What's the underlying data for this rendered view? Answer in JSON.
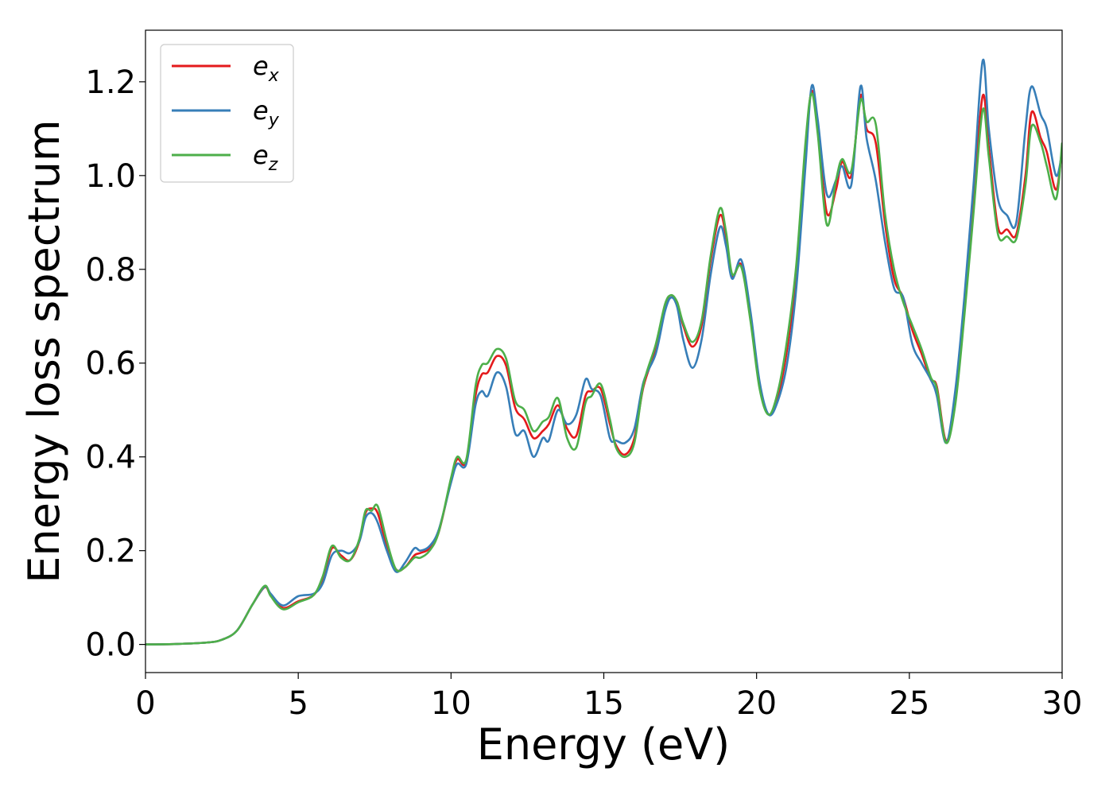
{
  "chart_data": {
    "type": "line",
    "title": "",
    "xlabel": "Energy (eV)",
    "ylabel": "Energy loss spectrum",
    "xlim": [
      0,
      30
    ],
    "ylim": [
      -0.06,
      1.31
    ],
    "xticks": [
      0,
      5,
      10,
      15,
      20,
      25,
      30
    ],
    "xtick_labels": [
      "0",
      "5",
      "10",
      "15",
      "20",
      "25",
      "30"
    ],
    "yticks": [
      0.0,
      0.2,
      0.4,
      0.6,
      0.8,
      1.0,
      1.2
    ],
    "ytick_labels": [
      "0.0",
      "0.2",
      "0.4",
      "0.6",
      "0.8",
      "1.0",
      "1.2"
    ],
    "grid": false,
    "legend_position": "top-left",
    "series": [
      {
        "name": "e",
        "subscript": "x",
        "color": "#e41a1c",
        "points": [
          [
            0,
            0
          ],
          [
            1,
            0.001
          ],
          [
            2,
            0.004
          ],
          [
            2.5,
            0.01
          ],
          [
            3,
            0.03
          ],
          [
            3.5,
            0.085
          ],
          [
            3.9,
            0.122
          ],
          [
            4.1,
            0.105
          ],
          [
            4.5,
            0.078
          ],
          [
            5,
            0.092
          ],
          [
            5.5,
            0.105
          ],
          [
            5.8,
            0.14
          ],
          [
            6.1,
            0.205
          ],
          [
            6.4,
            0.19
          ],
          [
            6.7,
            0.18
          ],
          [
            7,
            0.22
          ],
          [
            7.2,
            0.28
          ],
          [
            7.4,
            0.29
          ],
          [
            7.6,
            0.28
          ],
          [
            7.9,
            0.21
          ],
          [
            8.2,
            0.16
          ],
          [
            8.5,
            0.165
          ],
          [
            8.8,
            0.19
          ],
          [
            9,
            0.195
          ],
          [
            9.3,
            0.205
          ],
          [
            9.6,
            0.24
          ],
          [
            10,
            0.35
          ],
          [
            10.2,
            0.395
          ],
          [
            10.5,
            0.39
          ],
          [
            10.8,
            0.53
          ],
          [
            11,
            0.575
          ],
          [
            11.2,
            0.58
          ],
          [
            11.5,
            0.615
          ],
          [
            11.8,
            0.595
          ],
          [
            12.1,
            0.505
          ],
          [
            12.4,
            0.48
          ],
          [
            12.7,
            0.44
          ],
          [
            13,
            0.455
          ],
          [
            13.2,
            0.47
          ],
          [
            13.5,
            0.51
          ],
          [
            13.8,
            0.46
          ],
          [
            14.1,
            0.445
          ],
          [
            14.4,
            0.53
          ],
          [
            14.6,
            0.54
          ],
          [
            14.9,
            0.545
          ],
          [
            15.2,
            0.47
          ],
          [
            15.4,
            0.425
          ],
          [
            15.7,
            0.405
          ],
          [
            16,
            0.44
          ],
          [
            16.3,
            0.55
          ],
          [
            16.7,
            0.63
          ],
          [
            17,
            0.72
          ],
          [
            17.2,
            0.74
          ],
          [
            17.4,
            0.73
          ],
          [
            17.6,
            0.68
          ],
          [
            17.9,
            0.635
          ],
          [
            18.2,
            0.68
          ],
          [
            18.5,
            0.82
          ],
          [
            18.8,
            0.915
          ],
          [
            19,
            0.87
          ],
          [
            19.2,
            0.785
          ],
          [
            19.5,
            0.81
          ],
          [
            19.8,
            0.7
          ],
          [
            20.1,
            0.55
          ],
          [
            20.4,
            0.49
          ],
          [
            20.7,
            0.53
          ],
          [
            21,
            0.63
          ],
          [
            21.3,
            0.79
          ],
          [
            21.6,
            1.05
          ],
          [
            21.8,
            1.18
          ],
          [
            22,
            1.1
          ],
          [
            22.3,
            0.92
          ],
          [
            22.6,
            0.97
          ],
          [
            22.8,
            1.03
          ],
          [
            23.1,
            1.0
          ],
          [
            23.4,
            1.17
          ],
          [
            23.6,
            1.1
          ],
          [
            23.9,
            1.07
          ],
          [
            24.2,
            0.9
          ],
          [
            24.5,
            0.78
          ],
          [
            24.8,
            0.74
          ],
          [
            25.1,
            0.67
          ],
          [
            25.4,
            0.62
          ],
          [
            25.7,
            0.565
          ],
          [
            25.9,
            0.55
          ],
          [
            26.2,
            0.435
          ],
          [
            26.5,
            0.52
          ],
          [
            26.8,
            0.72
          ],
          [
            27.1,
            0.95
          ],
          [
            27.4,
            1.17
          ],
          [
            27.6,
            1.06
          ],
          [
            27.9,
            0.89
          ],
          [
            28.2,
            0.885
          ],
          [
            28.5,
            0.875
          ],
          [
            28.8,
            1.0
          ],
          [
            29,
            1.135
          ],
          [
            29.3,
            1.08
          ],
          [
            29.5,
            1.05
          ],
          [
            29.8,
            0.97
          ],
          [
            30,
            1.06
          ]
        ]
      },
      {
        "name": "e",
        "subscript": "y",
        "color": "#377eb8",
        "points": [
          [
            0,
            0
          ],
          [
            1,
            0.001
          ],
          [
            2,
            0.004
          ],
          [
            2.5,
            0.01
          ],
          [
            3,
            0.03
          ],
          [
            3.5,
            0.085
          ],
          [
            3.9,
            0.123
          ],
          [
            4.1,
            0.108
          ],
          [
            4.5,
            0.083
          ],
          [
            5,
            0.103
          ],
          [
            5.5,
            0.108
          ],
          [
            5.8,
            0.13
          ],
          [
            6.1,
            0.19
          ],
          [
            6.4,
            0.2
          ],
          [
            6.7,
            0.195
          ],
          [
            7,
            0.22
          ],
          [
            7.2,
            0.27
          ],
          [
            7.4,
            0.28
          ],
          [
            7.6,
            0.26
          ],
          [
            7.9,
            0.2
          ],
          [
            8.2,
            0.155
          ],
          [
            8.5,
            0.175
          ],
          [
            8.8,
            0.205
          ],
          [
            9,
            0.2
          ],
          [
            9.3,
            0.21
          ],
          [
            9.6,
            0.245
          ],
          [
            10,
            0.345
          ],
          [
            10.2,
            0.385
          ],
          [
            10.5,
            0.385
          ],
          [
            10.8,
            0.51
          ],
          [
            11,
            0.54
          ],
          [
            11.2,
            0.53
          ],
          [
            11.5,
            0.58
          ],
          [
            11.8,
            0.55
          ],
          [
            12.1,
            0.45
          ],
          [
            12.4,
            0.455
          ],
          [
            12.7,
            0.4
          ],
          [
            13,
            0.44
          ],
          [
            13.2,
            0.435
          ],
          [
            13.5,
            0.5
          ],
          [
            13.8,
            0.47
          ],
          [
            14.1,
            0.49
          ],
          [
            14.4,
            0.565
          ],
          [
            14.6,
            0.545
          ],
          [
            14.9,
            0.53
          ],
          [
            15.2,
            0.44
          ],
          [
            15.4,
            0.435
          ],
          [
            15.7,
            0.43
          ],
          [
            16,
            0.46
          ],
          [
            16.3,
            0.56
          ],
          [
            16.7,
            0.62
          ],
          [
            17,
            0.71
          ],
          [
            17.2,
            0.74
          ],
          [
            17.4,
            0.72
          ],
          [
            17.6,
            0.65
          ],
          [
            17.9,
            0.59
          ],
          [
            18.2,
            0.65
          ],
          [
            18.5,
            0.79
          ],
          [
            18.8,
            0.89
          ],
          [
            19,
            0.85
          ],
          [
            19.2,
            0.78
          ],
          [
            19.5,
            0.82
          ],
          [
            19.8,
            0.71
          ],
          [
            20.1,
            0.56
          ],
          [
            20.4,
            0.49
          ],
          [
            20.7,
            0.52
          ],
          [
            21,
            0.6
          ],
          [
            21.3,
            0.76
          ],
          [
            21.6,
            1.02
          ],
          [
            21.8,
            1.19
          ],
          [
            22,
            1.12
          ],
          [
            22.3,
            0.96
          ],
          [
            22.6,
            0.99
          ],
          [
            22.8,
            1.02
          ],
          [
            23.1,
            0.98
          ],
          [
            23.4,
            1.19
          ],
          [
            23.6,
            1.08
          ],
          [
            23.9,
            0.99
          ],
          [
            24.2,
            0.86
          ],
          [
            24.5,
            0.76
          ],
          [
            24.8,
            0.74
          ],
          [
            25.1,
            0.64
          ],
          [
            25.4,
            0.6
          ],
          [
            25.7,
            0.565
          ],
          [
            25.9,
            0.53
          ],
          [
            26.2,
            0.43
          ],
          [
            26.5,
            0.54
          ],
          [
            26.8,
            0.74
          ],
          [
            27.1,
            0.98
          ],
          [
            27.4,
            1.245
          ],
          [
            27.6,
            1.1
          ],
          [
            27.9,
            0.95
          ],
          [
            28.2,
            0.915
          ],
          [
            28.5,
            0.9
          ],
          [
            28.8,
            1.1
          ],
          [
            29,
            1.19
          ],
          [
            29.3,
            1.13
          ],
          [
            29.5,
            1.1
          ],
          [
            29.8,
            1.0
          ],
          [
            30,
            1.05
          ]
        ]
      },
      {
        "name": "e",
        "subscript": "z",
        "color": "#4daf4a",
        "points": [
          [
            0,
            0
          ],
          [
            1,
            0.001
          ],
          [
            2,
            0.004
          ],
          [
            2.5,
            0.01
          ],
          [
            3,
            0.03
          ],
          [
            3.5,
            0.085
          ],
          [
            3.9,
            0.125
          ],
          [
            4.1,
            0.103
          ],
          [
            4.5,
            0.075
          ],
          [
            5,
            0.09
          ],
          [
            5.5,
            0.105
          ],
          [
            5.8,
            0.145
          ],
          [
            6.1,
            0.21
          ],
          [
            6.4,
            0.185
          ],
          [
            6.7,
            0.18
          ],
          [
            7,
            0.225
          ],
          [
            7.2,
            0.285
          ],
          [
            7.4,
            0.285
          ],
          [
            7.6,
            0.295
          ],
          [
            7.9,
            0.22
          ],
          [
            8.2,
            0.16
          ],
          [
            8.5,
            0.165
          ],
          [
            8.8,
            0.185
          ],
          [
            9,
            0.185
          ],
          [
            9.3,
            0.2
          ],
          [
            9.6,
            0.24
          ],
          [
            10,
            0.355
          ],
          [
            10.2,
            0.4
          ],
          [
            10.5,
            0.395
          ],
          [
            10.8,
            0.55
          ],
          [
            11,
            0.595
          ],
          [
            11.2,
            0.6
          ],
          [
            11.5,
            0.63
          ],
          [
            11.8,
            0.61
          ],
          [
            12.1,
            0.52
          ],
          [
            12.4,
            0.5
          ],
          [
            12.7,
            0.455
          ],
          [
            13,
            0.475
          ],
          [
            13.2,
            0.485
          ],
          [
            13.5,
            0.525
          ],
          [
            13.8,
            0.44
          ],
          [
            14.1,
            0.42
          ],
          [
            14.4,
            0.515
          ],
          [
            14.6,
            0.53
          ],
          [
            14.9,
            0.555
          ],
          [
            15.2,
            0.48
          ],
          [
            15.4,
            0.42
          ],
          [
            15.7,
            0.4
          ],
          [
            16,
            0.43
          ],
          [
            16.3,
            0.555
          ],
          [
            16.7,
            0.64
          ],
          [
            17,
            0.725
          ],
          [
            17.2,
            0.745
          ],
          [
            17.4,
            0.73
          ],
          [
            17.6,
            0.685
          ],
          [
            17.9,
            0.645
          ],
          [
            18.2,
            0.69
          ],
          [
            18.5,
            0.83
          ],
          [
            18.8,
            0.93
          ],
          [
            19,
            0.88
          ],
          [
            19.2,
            0.79
          ],
          [
            19.5,
            0.805
          ],
          [
            19.8,
            0.69
          ],
          [
            20.1,
            0.545
          ],
          [
            20.4,
            0.49
          ],
          [
            20.7,
            0.54
          ],
          [
            21,
            0.65
          ],
          [
            21.3,
            0.81
          ],
          [
            21.6,
            1.07
          ],
          [
            21.8,
            1.175
          ],
          [
            22,
            1.09
          ],
          [
            22.3,
            0.895
          ],
          [
            22.6,
            0.99
          ],
          [
            22.8,
            1.035
          ],
          [
            23.1,
            1.01
          ],
          [
            23.4,
            1.16
          ],
          [
            23.6,
            1.115
          ],
          [
            23.9,
            1.11
          ],
          [
            24.2,
            0.92
          ],
          [
            24.5,
            0.8
          ],
          [
            24.8,
            0.73
          ],
          [
            25.1,
            0.68
          ],
          [
            25.4,
            0.63
          ],
          [
            25.7,
            0.57
          ],
          [
            25.9,
            0.545
          ],
          [
            26.2,
            0.43
          ],
          [
            26.5,
            0.51
          ],
          [
            26.8,
            0.7
          ],
          [
            27.1,
            0.92
          ],
          [
            27.4,
            1.14
          ],
          [
            27.6,
            1.04
          ],
          [
            27.9,
            0.875
          ],
          [
            28.2,
            0.87
          ],
          [
            28.5,
            0.865
          ],
          [
            28.8,
            0.98
          ],
          [
            29,
            1.105
          ],
          [
            29.3,
            1.07
          ],
          [
            29.5,
            1.02
          ],
          [
            29.8,
            0.95
          ],
          [
            30,
            1.07
          ]
        ]
      }
    ]
  }
}
